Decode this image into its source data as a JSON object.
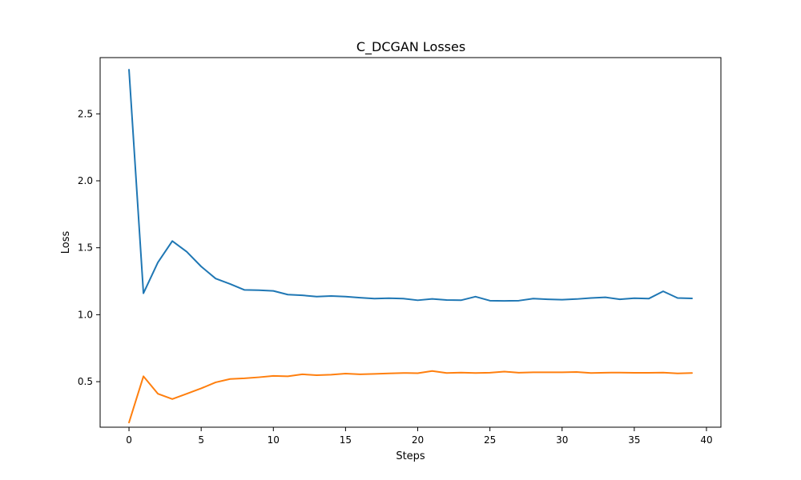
{
  "chart_data": {
    "type": "line",
    "title": "C_DCGAN Losses",
    "xlabel": "Steps",
    "ylabel": "Loss",
    "xlim": [
      -2,
      41
    ],
    "ylim": [
      0.16,
      2.92
    ],
    "x_ticks": [
      0,
      5,
      10,
      15,
      20,
      25,
      30,
      35,
      40
    ],
    "y_ticks": [
      0.5,
      1.0,
      1.5,
      2.0,
      2.5
    ],
    "y_tick_labels": [
      "0.5",
      "1.0",
      "1.5",
      "2.0",
      "2.5"
    ],
    "grid": false,
    "legend": "none",
    "x": [
      0,
      1,
      2,
      3,
      4,
      5,
      6,
      7,
      8,
      9,
      10,
      11,
      12,
      13,
      14,
      15,
      16,
      17,
      18,
      19,
      20,
      21,
      22,
      23,
      24,
      25,
      26,
      27,
      28,
      29,
      30,
      31,
      32,
      33,
      34,
      35,
      36,
      37,
      38,
      39
    ],
    "series": [
      {
        "color": "#1f77b4",
        "values": [
          2.83,
          1.16,
          1.39,
          1.55,
          1.47,
          1.36,
          1.27,
          1.23,
          1.185,
          1.183,
          1.178,
          1.15,
          1.145,
          1.135,
          1.14,
          1.135,
          1.127,
          1.12,
          1.123,
          1.12,
          1.108,
          1.118,
          1.11,
          1.108,
          1.135,
          1.105,
          1.103,
          1.105,
          1.12,
          1.115,
          1.112,
          1.117,
          1.125,
          1.13,
          1.115,
          1.123,
          1.12,
          1.175,
          1.125,
          1.122
        ]
      },
      {
        "color": "#ff7f0e",
        "values": [
          0.195,
          0.54,
          0.41,
          0.37,
          0.41,
          0.45,
          0.495,
          0.52,
          0.525,
          0.533,
          0.543,
          0.54,
          0.555,
          0.548,
          0.552,
          0.56,
          0.555,
          0.558,
          0.562,
          0.565,
          0.563,
          0.58,
          0.565,
          0.568,
          0.565,
          0.567,
          0.575,
          0.567,
          0.57,
          0.57,
          0.57,
          0.572,
          0.565,
          0.567,
          0.568,
          0.566,
          0.566,
          0.568,
          0.562,
          0.565
        ]
      }
    ]
  }
}
